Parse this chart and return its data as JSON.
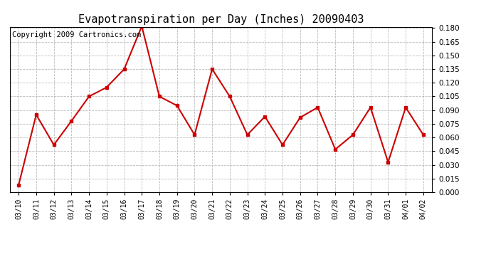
{
  "title": "Evapotranspiration per Day (Inches) 20090403",
  "copyright_text": "Copyright 2009 Cartronics.com",
  "dates": [
    "03/10",
    "03/11",
    "03/12",
    "03/13",
    "03/14",
    "03/15",
    "03/16",
    "03/17",
    "03/18",
    "03/19",
    "03/20",
    "03/21",
    "03/22",
    "03/23",
    "03/24",
    "03/25",
    "03/26",
    "03/27",
    "03/28",
    "03/29",
    "03/30",
    "03/31",
    "04/01",
    "04/02"
  ],
  "values": [
    0.008,
    0.085,
    0.052,
    0.078,
    0.105,
    0.115,
    0.135,
    0.182,
    0.105,
    0.095,
    0.063,
    0.135,
    0.105,
    0.063,
    0.083,
    0.052,
    0.082,
    0.093,
    0.047,
    0.063,
    0.093,
    0.033,
    0.093,
    0.063
  ],
  "line_color": "#cc0000",
  "marker_color": "#cc0000",
  "bg_color": "#ffffff",
  "grid_color": "#bbbbbb",
  "ylim_min": 0.0,
  "ylim_max": 0.1815,
  "ytick_min": 0.0,
  "ytick_max": 0.18,
  "ytick_step": 0.015,
  "title_fontsize": 11,
  "copyright_fontsize": 7.5,
  "tick_fontsize": 7.5,
  "xtick_fontsize": 7
}
